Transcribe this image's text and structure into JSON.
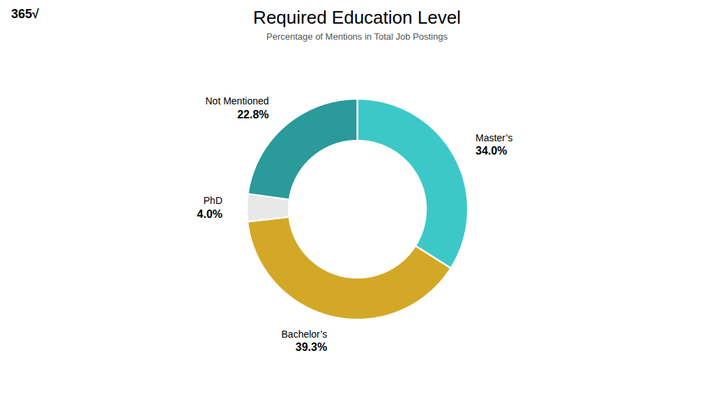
{
  "chart_data": {
    "type": "pie",
    "title": "Required Education Level",
    "subtitle": "Percentage of Mentions in Total Job Postings",
    "annotations": [
      "365√"
    ],
    "categories": [
      "Master’s",
      "Bachelor’s",
      "PhD",
      "Not Mentioned"
    ],
    "values": [
      34.0,
      39.3,
      4.0,
      22.8
    ],
    "value_labels": [
      "34.0%",
      "39.3%",
      "4.0%",
      "22.8%"
    ],
    "colors": [
      "#3dc8c8",
      "#d4a827",
      "#e8e8e8",
      "#2a9a9a"
    ],
    "data_labels": true
  }
}
